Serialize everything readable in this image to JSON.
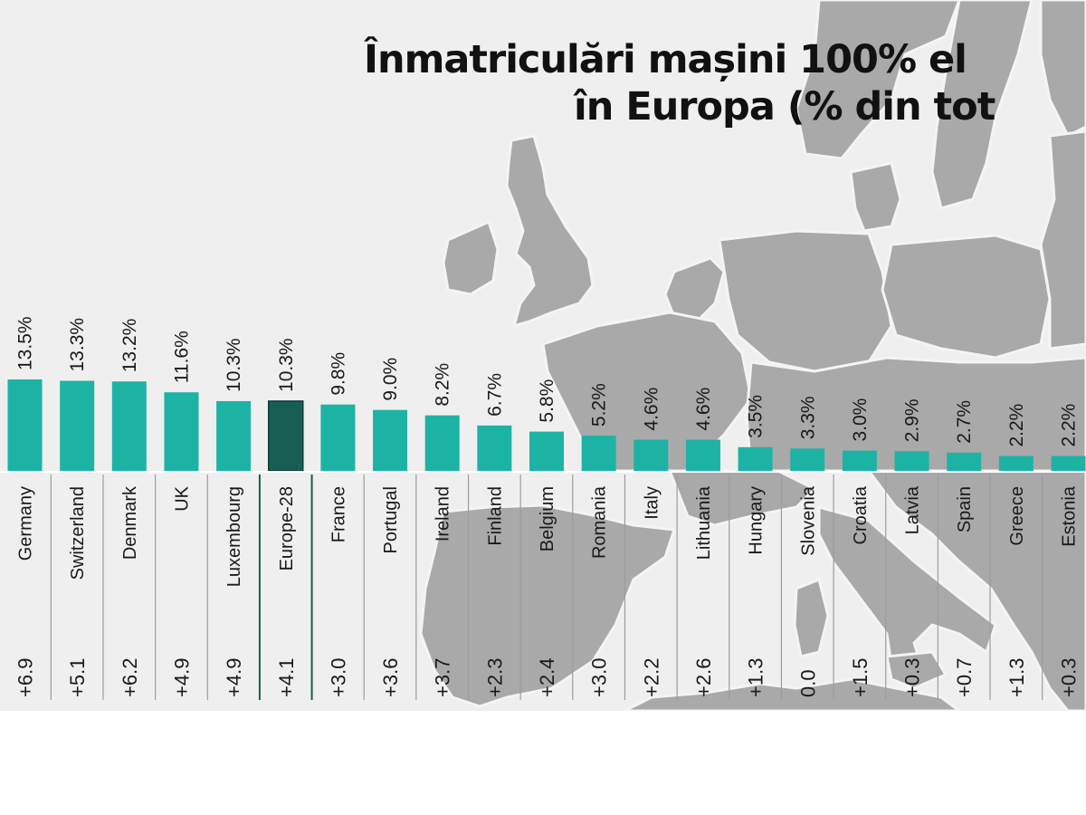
{
  "chart_data": {
    "type": "bar",
    "title_line1": "Înmatriculări mașini 100% el",
    "title_line2": "în Europa (% din tot",
    "categories": [
      "Germany",
      "Switzerland",
      "Denmark",
      "UK",
      "Luxembourg",
      "Europe-28",
      "France",
      "Portugal",
      "Ireland",
      "Finland",
      "Belgium",
      "Romania",
      "Italy",
      "Lithuania",
      "Hungary",
      "Slovenia",
      "Croatia",
      "Latvia",
      "Spain",
      "Greece",
      "Estonia"
    ],
    "values": [
      13.5,
      13.3,
      13.2,
      11.6,
      10.3,
      10.3,
      9.8,
      9.0,
      8.2,
      6.7,
      5.8,
      5.2,
      4.6,
      4.6,
      3.5,
      3.3,
      3.0,
      2.9,
      2.7,
      2.2,
      2.2
    ],
    "value_labels": [
      "13.5%",
      "13.3%",
      "13.2%",
      "11.6%",
      "10.3%",
      "10.3%",
      "9.8%",
      "9.0%",
      "8.2%",
      "6.7%",
      "5.8%",
      "5.2%",
      "4.6%",
      "4.6%",
      "3.5%",
      "3.3%",
      "3.0%",
      "2.9%",
      "2.7%",
      "2.2%",
      "2.2%"
    ],
    "changes": [
      "+6.9",
      "+5.1",
      "+6.2",
      "+4.9",
      "+4.9",
      "+4.1",
      "+3.0",
      "+3.6",
      "+3.7",
      "+2.3",
      "+2.4",
      "+3.0",
      "+2.2",
      "+2.6",
      "+1.3",
      "0.0",
      "+1.5",
      "+0.3",
      "+0.7",
      "+1.3",
      "+0.3"
    ],
    "highlight_category": "Europe-28",
    "xlabel": "",
    "ylabel": "",
    "ylim": [
      0,
      14
    ],
    "grid": false,
    "legend": "none"
  },
  "colors": {
    "bar": "#1db3a4",
    "bar_highlight": "#175f53",
    "highlight_divider": "#1f5a4c",
    "map_land": "#a9a9a9",
    "background": "#efefef"
  }
}
